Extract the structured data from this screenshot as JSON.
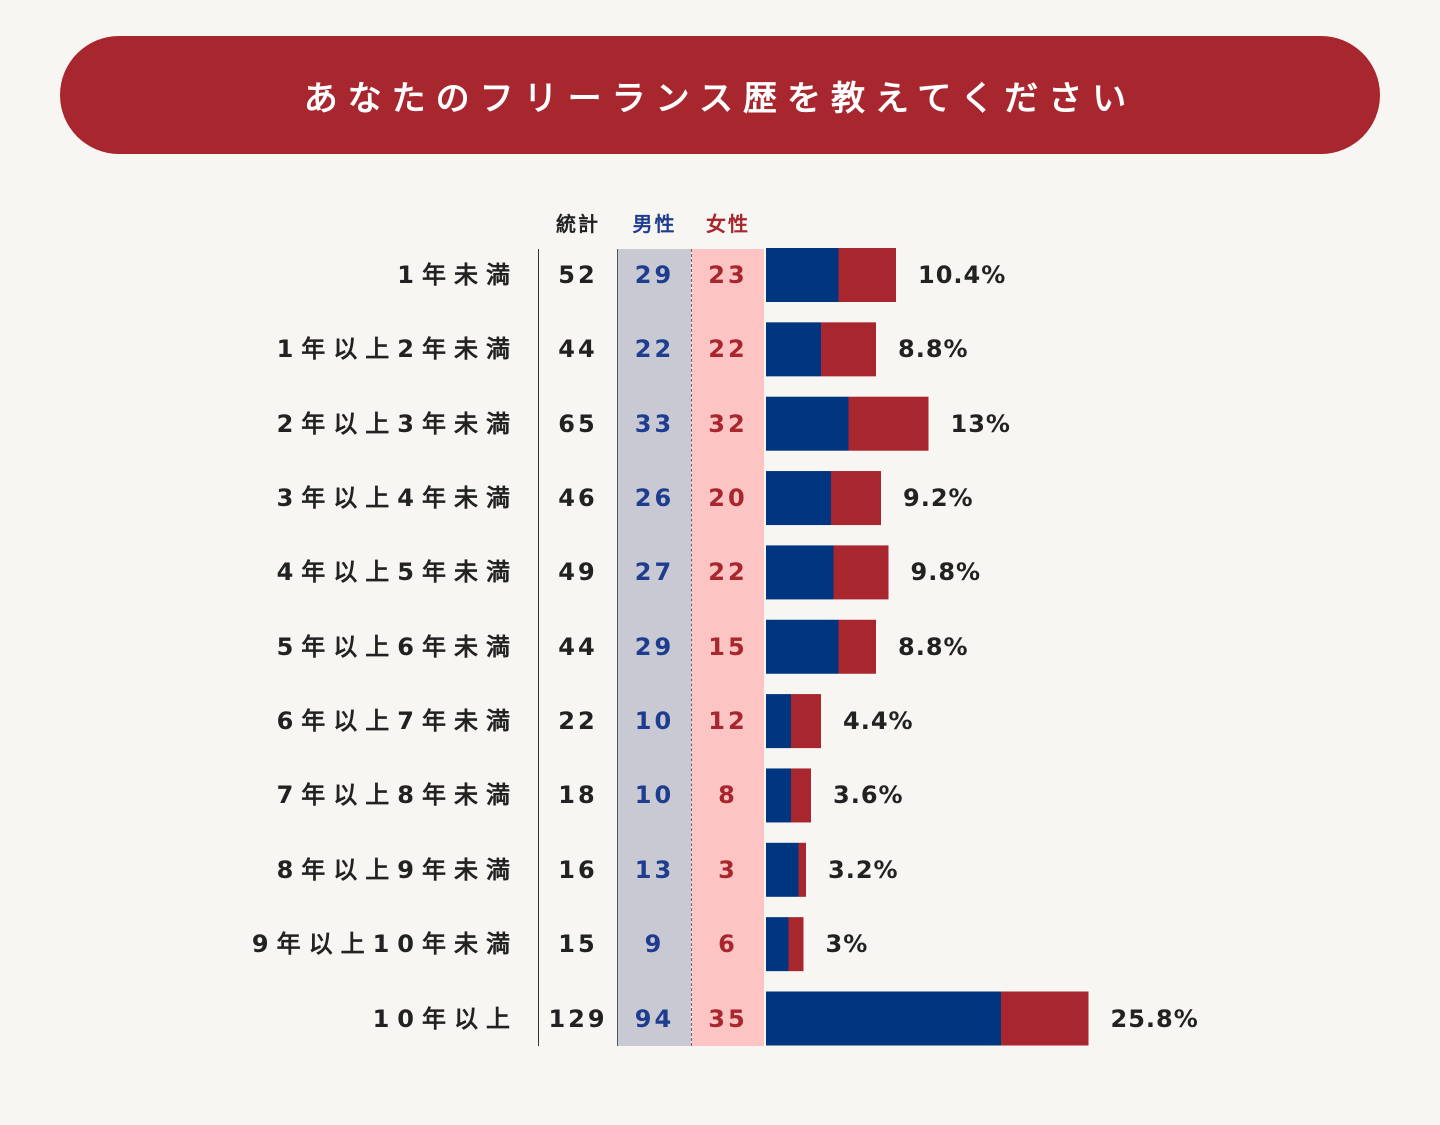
{
  "banner": {
    "title": "あなたのフリーランス歴を教えてください"
  },
  "colors": {
    "male": "#003580",
    "female": "#a8262d",
    "banner": "#a8262d"
  },
  "headers": {
    "total": "統計",
    "male": "男性",
    "female": "女性"
  },
  "chart_data": {
    "type": "bar",
    "orientation": "horizontal",
    "stacked": true,
    "title": "あなたのフリーランス歴を教えてください",
    "categories": [
      "1年未満",
      "1年以上2年未満",
      "2年以上3年未満",
      "3年以上4年未満",
      "4年以上5年未満",
      "5年以上6年未満",
      "6年以上7年未満",
      "7年以上8年未満",
      "8年以上9年未満",
      "9年以上10年未満",
      "10年以上"
    ],
    "totals": [
      52,
      44,
      65,
      46,
      49,
      44,
      22,
      18,
      16,
      15,
      129
    ],
    "series": [
      {
        "name": "男性",
        "values": [
          29,
          22,
          33,
          26,
          27,
          29,
          10,
          10,
          13,
          9,
          94
        ]
      },
      {
        "name": "女性",
        "values": [
          23,
          22,
          32,
          20,
          22,
          15,
          12,
          8,
          3,
          6,
          35
        ]
      }
    ],
    "percent_labels": [
      "10.4%",
      "8.8%",
      "13%",
      "9.2%",
      "9.8%",
      "8.8%",
      "4.4%",
      "3.6%",
      "3.2%",
      "3%",
      "25.8%"
    ],
    "xlim": [
      0,
      129
    ],
    "legend": "column headers above table"
  }
}
